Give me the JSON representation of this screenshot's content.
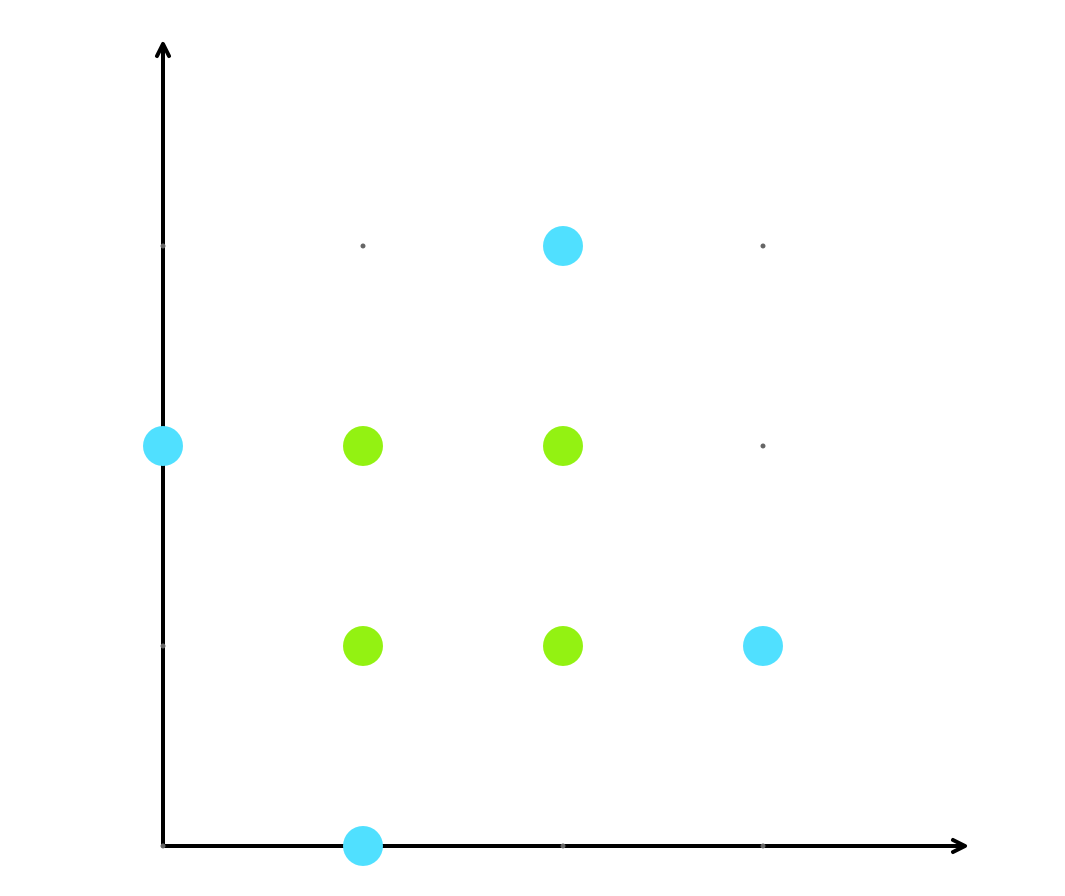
{
  "chart_data": {
    "type": "scatter",
    "xlim": [
      0,
      4
    ],
    "ylim": [
      0,
      4
    ],
    "xticks": [
      0,
      1,
      2,
      3
    ],
    "yticks": [
      0,
      1,
      2,
      3
    ],
    "grid": "dots",
    "series": [
      {
        "color": "#50e0ff",
        "x": [
          2,
          0,
          3,
          1
        ],
        "values": [
          3,
          2,
          1,
          0
        ]
      },
      {
        "color": "#93f212",
        "x": [
          1,
          2,
          1,
          2
        ],
        "values": [
          2,
          2,
          1,
          1
        ]
      }
    ]
  }
}
